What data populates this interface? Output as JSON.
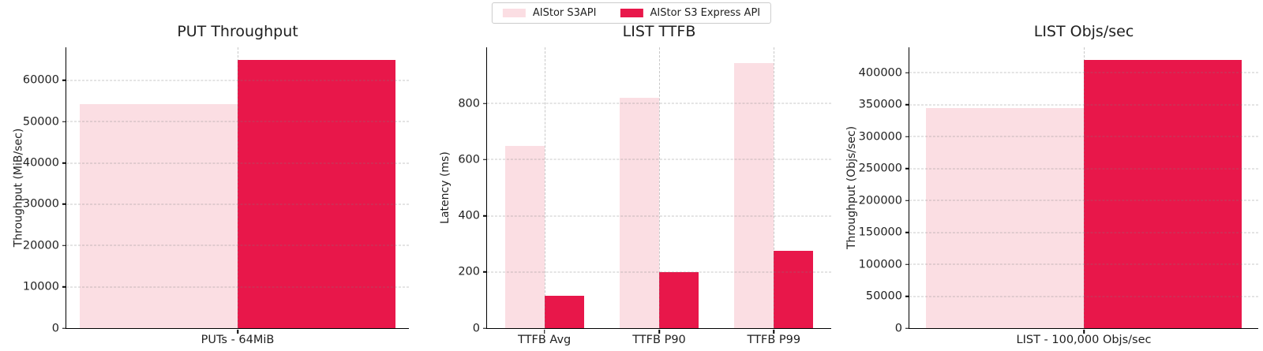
{
  "legend": {
    "items": [
      {
        "label": "AIStor S3API",
        "color": "#FBDEE3"
      },
      {
        "label": "AIStor S3 Express API",
        "color": "#E8174A"
      }
    ]
  },
  "colors": {
    "s3api_pink": "#FBDEE3",
    "s3express_red": "#E8174A"
  },
  "chart_data": [
    {
      "type": "bar",
      "title": "PUT Throughput",
      "xlabel": "",
      "ylabel": "Throughput (MiB/sec)",
      "categories": [
        "PUTs - 64MiB"
      ],
      "series": [
        {
          "name": "AIStor S3API",
          "values": [
            54300
          ]
        },
        {
          "name": "AIStor S3 Express API",
          "values": [
            65000
          ]
        }
      ],
      "ylim": [
        0,
        68000
      ],
      "yticks": [
        0,
        10000,
        20000,
        30000,
        40000,
        50000,
        60000
      ],
      "grid": true,
      "legend_position": "figure-top-center"
    },
    {
      "type": "bar",
      "title": "LIST TTFB",
      "xlabel": "",
      "ylabel": "Latency (ms)",
      "categories": [
        "TTFB Avg",
        "TTFB P90",
        "TTFB P99"
      ],
      "series": [
        {
          "name": "AIStor S3API",
          "values": [
            650,
            820,
            945
          ]
        },
        {
          "name": "AIStor S3 Express API",
          "values": [
            115,
            200,
            275
          ]
        }
      ],
      "ylim": [
        0,
        1000
      ],
      "yticks": [
        0,
        200,
        400,
        600,
        800
      ],
      "grid": true,
      "legend_position": "figure-top-center"
    },
    {
      "type": "bar",
      "title": "LIST Objs/sec",
      "xlabel": "",
      "ylabel": "Throughput (Objs/sec)",
      "categories": [
        "LIST - 100,000 Objs/sec"
      ],
      "series": [
        {
          "name": "AIStor S3API",
          "values": [
            345000
          ]
        },
        {
          "name": "AIStor S3 Express API",
          "values": [
            420000
          ]
        }
      ],
      "ylim": [
        0,
        440000
      ],
      "yticks": [
        0,
        50000,
        100000,
        150000,
        200000,
        250000,
        300000,
        350000,
        400000
      ],
      "grid": true,
      "legend_position": "figure-top-center"
    }
  ]
}
